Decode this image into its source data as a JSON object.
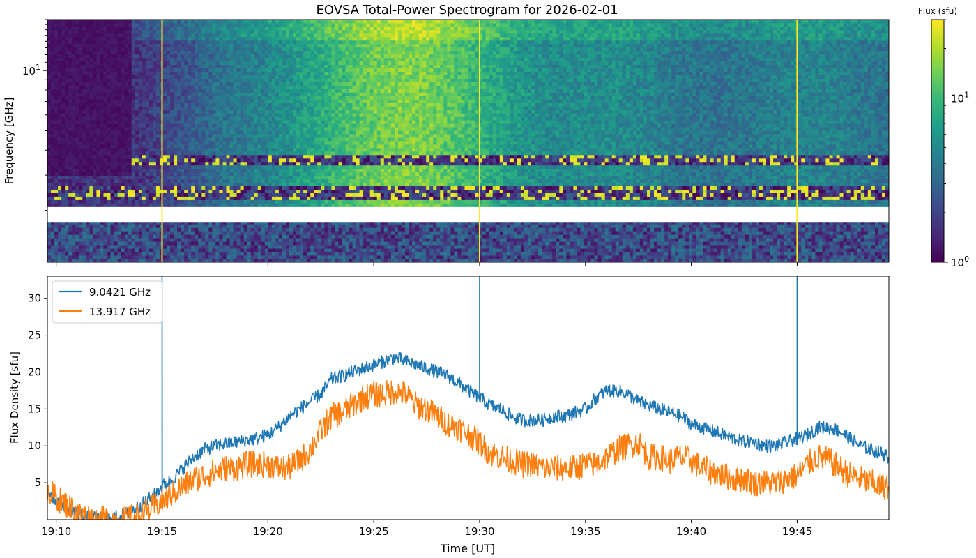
{
  "title": "EOVSA Total-Power Spectrogram for 2026-02-01",
  "chart_data": [
    {
      "type": "heatmap",
      "ylabel": "Frequency [GHz]",
      "yscale": "log",
      "ytick_labels": [
        "10<sup>1</sup>"
      ],
      "y_major_tick": 10,
      "ylim": [
        1.1,
        18
      ],
      "x_range": [
        "19:09:35",
        "19:49:20"
      ],
      "x_ticks": [
        "19:10",
        "19:15",
        "19:20",
        "19:25",
        "19:30",
        "19:35",
        "19:40",
        "19:45"
      ],
      "colorbar": {
        "label": "Flux (sfu)",
        "scale": "log",
        "range": [
          1,
          30
        ],
        "tick_labels": [
          {
            "v": 1,
            "base": "10",
            "exp": "0"
          },
          {
            "v": 10,
            "base": "10",
            "exp": "1"
          }
        ],
        "colormap": [
          "#440154",
          "#482878",
          "#3e4989",
          "#31688e",
          "#26828e",
          "#1f9e89",
          "#35b779",
          "#6ece58",
          "#b5de2b",
          "#fde725"
        ]
      },
      "vertical_artifacts_at": [
        "19:15",
        "19:30",
        "19:45"
      ],
      "data_gap_GHz": [
        1.75,
        2.05
      ]
    },
    {
      "type": "line",
      "xlabel": "Time [UT]",
      "ylabel": "Flux Density [sfu]",
      "ylim": [
        0,
        33
      ],
      "yticks": [
        5,
        10,
        15,
        20,
        25,
        30
      ],
      "x_ticks": [
        "19:10",
        "19:15",
        "19:20",
        "19:25",
        "19:30",
        "19:35",
        "19:40",
        "19:45"
      ],
      "legend_position": "top-left",
      "series": [
        {
          "name": "9.0421 GHz",
          "color": "#1f77b4",
          "x_minutes": [
            9.6,
            10.0,
            10.5,
            11.0,
            11.5,
            12.0,
            12.5,
            13.0,
            13.5,
            14.0,
            14.5,
            15.0,
            15.5,
            16.0,
            16.5,
            17.0,
            17.5,
            18.0,
            18.5,
            19.0,
            19.5,
            20.0,
            20.5,
            21.0,
            21.5,
            22.0,
            22.5,
            23.0,
            23.5,
            24.0,
            24.5,
            25.0,
            25.5,
            26.0,
            26.5,
            27.0,
            27.5,
            28.0,
            28.5,
            29.0,
            29.5,
            30.0,
            30.5,
            31.0,
            31.5,
            32.0,
            32.5,
            33.0,
            33.5,
            34.0,
            34.5,
            35.0,
            35.5,
            36.0,
            36.5,
            37.0,
            37.5,
            38.0,
            38.5,
            39.0,
            39.5,
            40.0,
            40.5,
            41.0,
            41.5,
            42.0,
            42.5,
            43.0,
            43.5,
            44.0,
            44.5,
            45.0,
            45.5,
            46.0,
            46.5,
            47.0,
            47.5,
            48.0,
            48.5,
            49.0,
            49.3
          ],
          "values": [
            4.0,
            2.5,
            1.8,
            0.8,
            0.3,
            0.1,
            0.2,
            0.5,
            1.0,
            2.0,
            3.0,
            4.5,
            5.5,
            7.0,
            8.5,
            9.5,
            10.0,
            10.3,
            10.5,
            10.8,
            11.0,
            11.5,
            12.5,
            14.0,
            15.0,
            16.0,
            17.0,
            19.0,
            19.5,
            20.0,
            20.5,
            21.0,
            21.5,
            22.0,
            21.5,
            21.0,
            20.5,
            20.0,
            19.5,
            18.5,
            17.5,
            16.5,
            15.5,
            15.0,
            14.0,
            13.5,
            13.5,
            13.5,
            14.0,
            14.0,
            14.5,
            15.0,
            16.5,
            17.5,
            17.5,
            17.0,
            16.0,
            15.5,
            15.0,
            14.5,
            14.0,
            13.0,
            12.5,
            12.0,
            11.5,
            11.0,
            10.5,
            10.5,
            10.0,
            10.0,
            10.5,
            11.0,
            11.5,
            12.5,
            12.5,
            12.0,
            11.0,
            10.0,
            9.5,
            9.0,
            8.5
          ],
          "spikes": [
            {
              "x": 15.0,
              "y": 33
            },
            {
              "x": 30.0,
              "y": 33
            },
            {
              "x": 45.0,
              "y": 33
            }
          ]
        },
        {
          "name": "13.917 GHz",
          "color": "#ff7f0e",
          "x_minutes": [
            9.6,
            10.0,
            10.5,
            11.0,
            11.5,
            12.0,
            12.5,
            13.0,
            13.5,
            14.0,
            14.5,
            15.0,
            15.5,
            16.0,
            16.5,
            17.0,
            17.5,
            18.0,
            18.5,
            19.0,
            19.5,
            20.0,
            20.5,
            21.0,
            21.5,
            22.0,
            22.5,
            23.0,
            23.5,
            24.0,
            24.5,
            25.0,
            25.5,
            26.0,
            26.5,
            27.0,
            27.5,
            28.0,
            28.5,
            29.0,
            29.5,
            30.0,
            30.5,
            31.0,
            31.5,
            32.0,
            32.5,
            33.0,
            33.5,
            34.0,
            34.5,
            35.0,
            35.5,
            36.0,
            36.5,
            37.0,
            37.5,
            38.0,
            38.5,
            39.0,
            39.5,
            40.0,
            40.5,
            41.0,
            41.5,
            42.0,
            42.5,
            43.0,
            43.5,
            44.0,
            44.5,
            45.0,
            45.5,
            46.0,
            46.5,
            47.0,
            47.5,
            48.0,
            48.5,
            49.0,
            49.3
          ],
          "values": [
            4.0,
            3.0,
            2.0,
            0.8,
            0.3,
            0.0,
            0.0,
            0.0,
            0.2,
            0.8,
            1.5,
            2.5,
            3.5,
            4.5,
            5.5,
            6.0,
            6.5,
            7.0,
            7.0,
            7.5,
            7.5,
            7.5,
            7.0,
            7.0,
            8.0,
            9.5,
            12.0,
            14.0,
            14.5,
            15.5,
            16.5,
            17.0,
            17.0,
            17.5,
            17.0,
            15.5,
            15.0,
            14.0,
            13.0,
            12.5,
            11.5,
            10.5,
            9.0,
            8.5,
            8.0,
            7.5,
            7.5,
            7.0,
            7.0,
            7.0,
            7.0,
            7.5,
            7.5,
            8.5,
            9.5,
            10.0,
            10.5,
            8.5,
            8.5,
            8.0,
            8.5,
            8.0,
            7.0,
            6.5,
            6.0,
            5.5,
            5.5,
            5.0,
            5.0,
            5.0,
            5.5,
            6.0,
            7.5,
            8.5,
            8.0,
            7.0,
            6.0,
            5.5,
            5.0,
            4.5,
            4.5
          ]
        }
      ]
    }
  ],
  "xlabel": "Time [UT]"
}
